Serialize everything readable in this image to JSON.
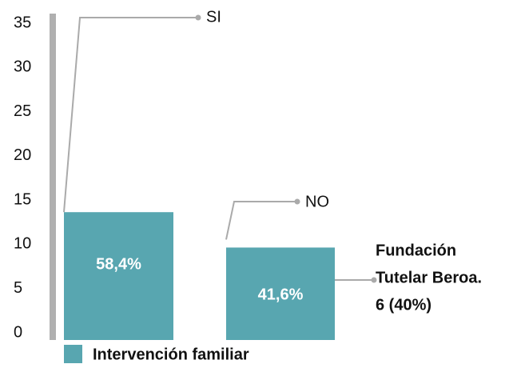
{
  "chart_data": {
    "type": "bar",
    "categories": [
      "SI",
      "NO"
    ],
    "series": [
      {
        "name": "Intervención familiar",
        "color": "#58a6b0",
        "values": [
          14,
          10
        ]
      }
    ],
    "share_labels": [
      "58,4%",
      "41,6%"
    ],
    "annotation": [
      "Fundación",
      "Tutelar Beroa.",
      "6 (40%)"
    ],
    "ylim": [
      0,
      35
    ],
    "yticks": [
      0,
      5,
      10,
      15,
      20,
      25,
      30,
      35
    ]
  }
}
